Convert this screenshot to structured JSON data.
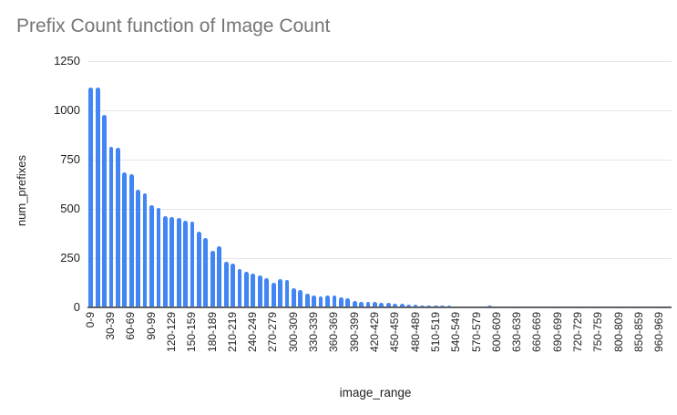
{
  "chart_data": {
    "type": "bar",
    "title": "Prefix Count function of Image Count",
    "xlabel": "image_range",
    "ylabel": "num_prefixes",
    "ylim": [
      0,
      1250
    ],
    "y_ticks": [
      0,
      250,
      500,
      750,
      1000,
      1250
    ],
    "grid": "horizontal",
    "legend_position": "none",
    "num_bars": 85,
    "x_label_every_n_bars": 3,
    "x_tick_labels": [
      "0-9",
      "30-39",
      "60-69",
      "90-99",
      "120-129",
      "150-159",
      "180-189",
      "210-219",
      "240-249",
      "270-279",
      "300-309",
      "330-339",
      "360-369",
      "390-399",
      "420-429",
      "450-459",
      "480-489",
      "510-519",
      "540-549",
      "570-579",
      "600-609",
      "630-639",
      "660-669",
      "690-699",
      "720-729",
      "750-759",
      "800-809",
      "850-859",
      "960-969"
    ],
    "values": [
      1118,
      1115,
      975,
      816,
      809,
      685,
      678,
      598,
      577,
      520,
      507,
      465,
      458,
      452,
      440,
      434,
      386,
      352,
      288,
      311,
      231,
      222,
      193,
      180,
      172,
      160,
      148,
      127,
      143,
      139,
      98,
      90,
      68,
      60,
      56,
      58,
      62,
      51,
      48,
      32,
      29,
      28,
      28,
      25,
      23,
      20,
      17,
      15,
      12,
      11,
      10,
      9,
      9,
      8,
      2,
      2,
      2,
      2,
      2,
      9,
      1,
      1,
      1,
      1,
      1,
      1,
      1,
      1,
      1,
      1,
      1,
      1,
      1,
      1,
      1,
      1,
      1,
      1,
      1,
      1,
      1,
      1,
      1,
      1,
      1
    ]
  },
  "colors": {
    "background": "#ffffff",
    "bar": "#4285f4",
    "title": "#757575",
    "tick_label": "#222222",
    "axis_title": "#222222",
    "gridline": "#e6e6e6",
    "baseline": "#5f6368"
  }
}
